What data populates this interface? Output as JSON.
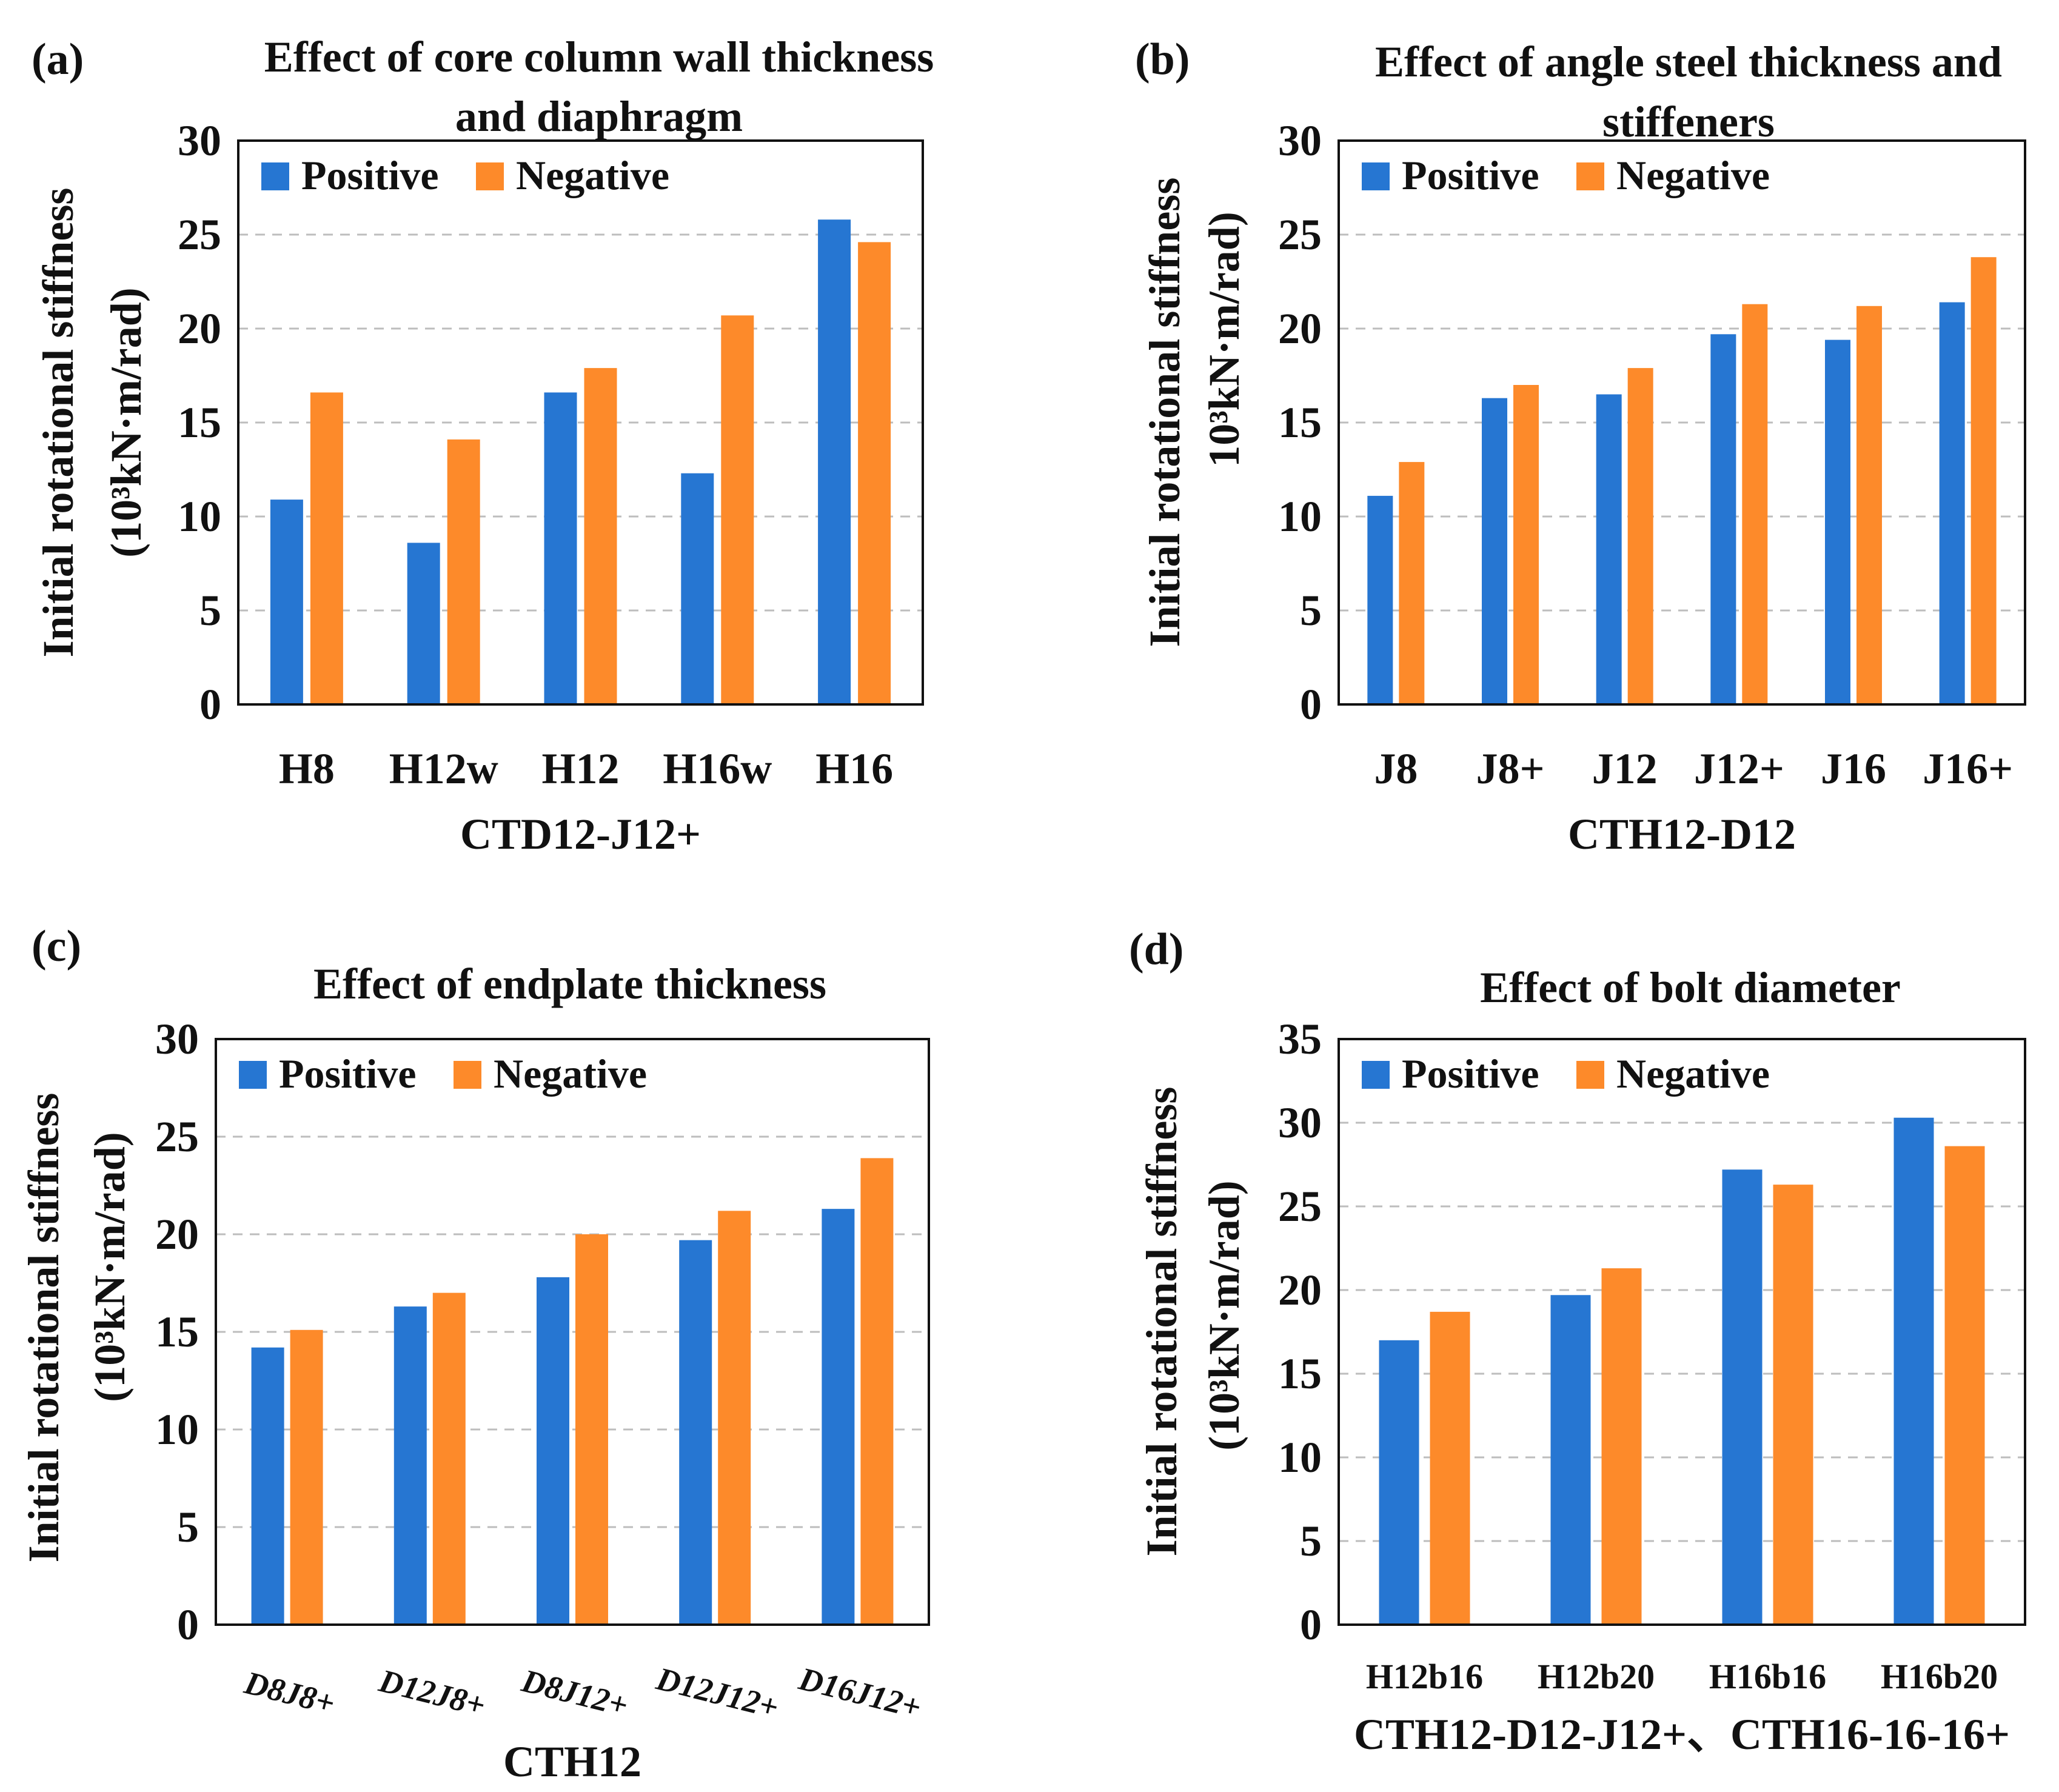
{
  "colors": {
    "positive": "#2676d2",
    "negative": "#fd8a2a"
  },
  "chart_data": [
    {
      "type": "bar",
      "panel_label": "(a)",
      "title_lines": [
        "Effect of core column wall thickness",
        "and diaphragm"
      ],
      "categories": [
        "H8",
        "H12w",
        "H12",
        "H16w",
        "H16"
      ],
      "series": [
        {
          "name": "Positive",
          "values": [
            10.9,
            8.6,
            16.6,
            12.3,
            25.8
          ]
        },
        {
          "name": "Negative",
          "values": [
            16.6,
            14.1,
            17.9,
            20.7,
            24.6
          ]
        }
      ],
      "xlabel": "CTD12-J12+",
      "ylabel_lines": [
        "Initial rotational stiffness",
        "(10³kN·m/rad)"
      ],
      "ylim": [
        0,
        30
      ],
      "yticks": [
        0,
        5,
        10,
        15,
        20,
        25,
        30
      ],
      "legend_position": "top-left",
      "grid": true
    },
    {
      "type": "bar",
      "panel_label": "(b)",
      "title_lines": [
        "Effect of angle steel thickness and",
        "stiffeners"
      ],
      "categories": [
        "J8",
        "J8+",
        "J12",
        "J12+",
        "J16",
        "J16+"
      ],
      "series": [
        {
          "name": "Positive",
          "values": [
            11.1,
            16.3,
            16.5,
            19.7,
            19.4,
            21.4
          ]
        },
        {
          "name": "Negative",
          "values": [
            12.9,
            17.0,
            17.9,
            21.3,
            21.2,
            23.8
          ]
        }
      ],
      "xlabel": "CTH12-D12",
      "ylabel_lines": [
        "Initial rotational stiffness",
        "10³kN·m/rad)"
      ],
      "ylim": [
        0,
        30
      ],
      "yticks": [
        0,
        5,
        10,
        15,
        20,
        25,
        30
      ],
      "legend_position": "top-left",
      "grid": true
    },
    {
      "type": "bar",
      "panel_label": "(c)",
      "title_lines": [
        "Effect of endplate thickness"
      ],
      "categories": [
        "D8J8+",
        "D12J8+",
        "D8J12+",
        "D12J12+",
        "D16J12+"
      ],
      "series": [
        {
          "name": "Positive",
          "values": [
            14.2,
            16.3,
            17.8,
            19.7,
            21.3
          ]
        },
        {
          "name": "Negative",
          "values": [
            15.1,
            17.0,
            20.0,
            21.2,
            23.9
          ]
        }
      ],
      "xlabel": "CTH12",
      "ylabel_lines": [
        "Initial rotational stiffness",
        "(10³kN·m/rad)"
      ],
      "ylim": [
        0,
        30
      ],
      "yticks": [
        0,
        5,
        10,
        15,
        20,
        25,
        30
      ],
      "legend_position": "top-left",
      "grid": true
    },
    {
      "type": "bar",
      "panel_label": "(d)",
      "title_lines": [
        "Effect of bolt diameter"
      ],
      "categories": [
        "H12b16",
        "H12b20",
        "H16b16",
        "H16b20"
      ],
      "series": [
        {
          "name": "Positive",
          "values": [
            17.0,
            19.7,
            27.2,
            30.3
          ]
        },
        {
          "name": "Negative",
          "values": [
            18.7,
            21.3,
            26.3,
            28.6
          ]
        }
      ],
      "xlabel": "CTH12-D12-J12+、CTH16-16-16+",
      "ylabel_lines": [
        "Initial rotational stiffness",
        "(10³kN·m/rad)"
      ],
      "ylim": [
        0,
        35
      ],
      "yticks": [
        0,
        5,
        10,
        15,
        20,
        25,
        30,
        35
      ],
      "legend_position": "top-left",
      "grid": true
    }
  ]
}
